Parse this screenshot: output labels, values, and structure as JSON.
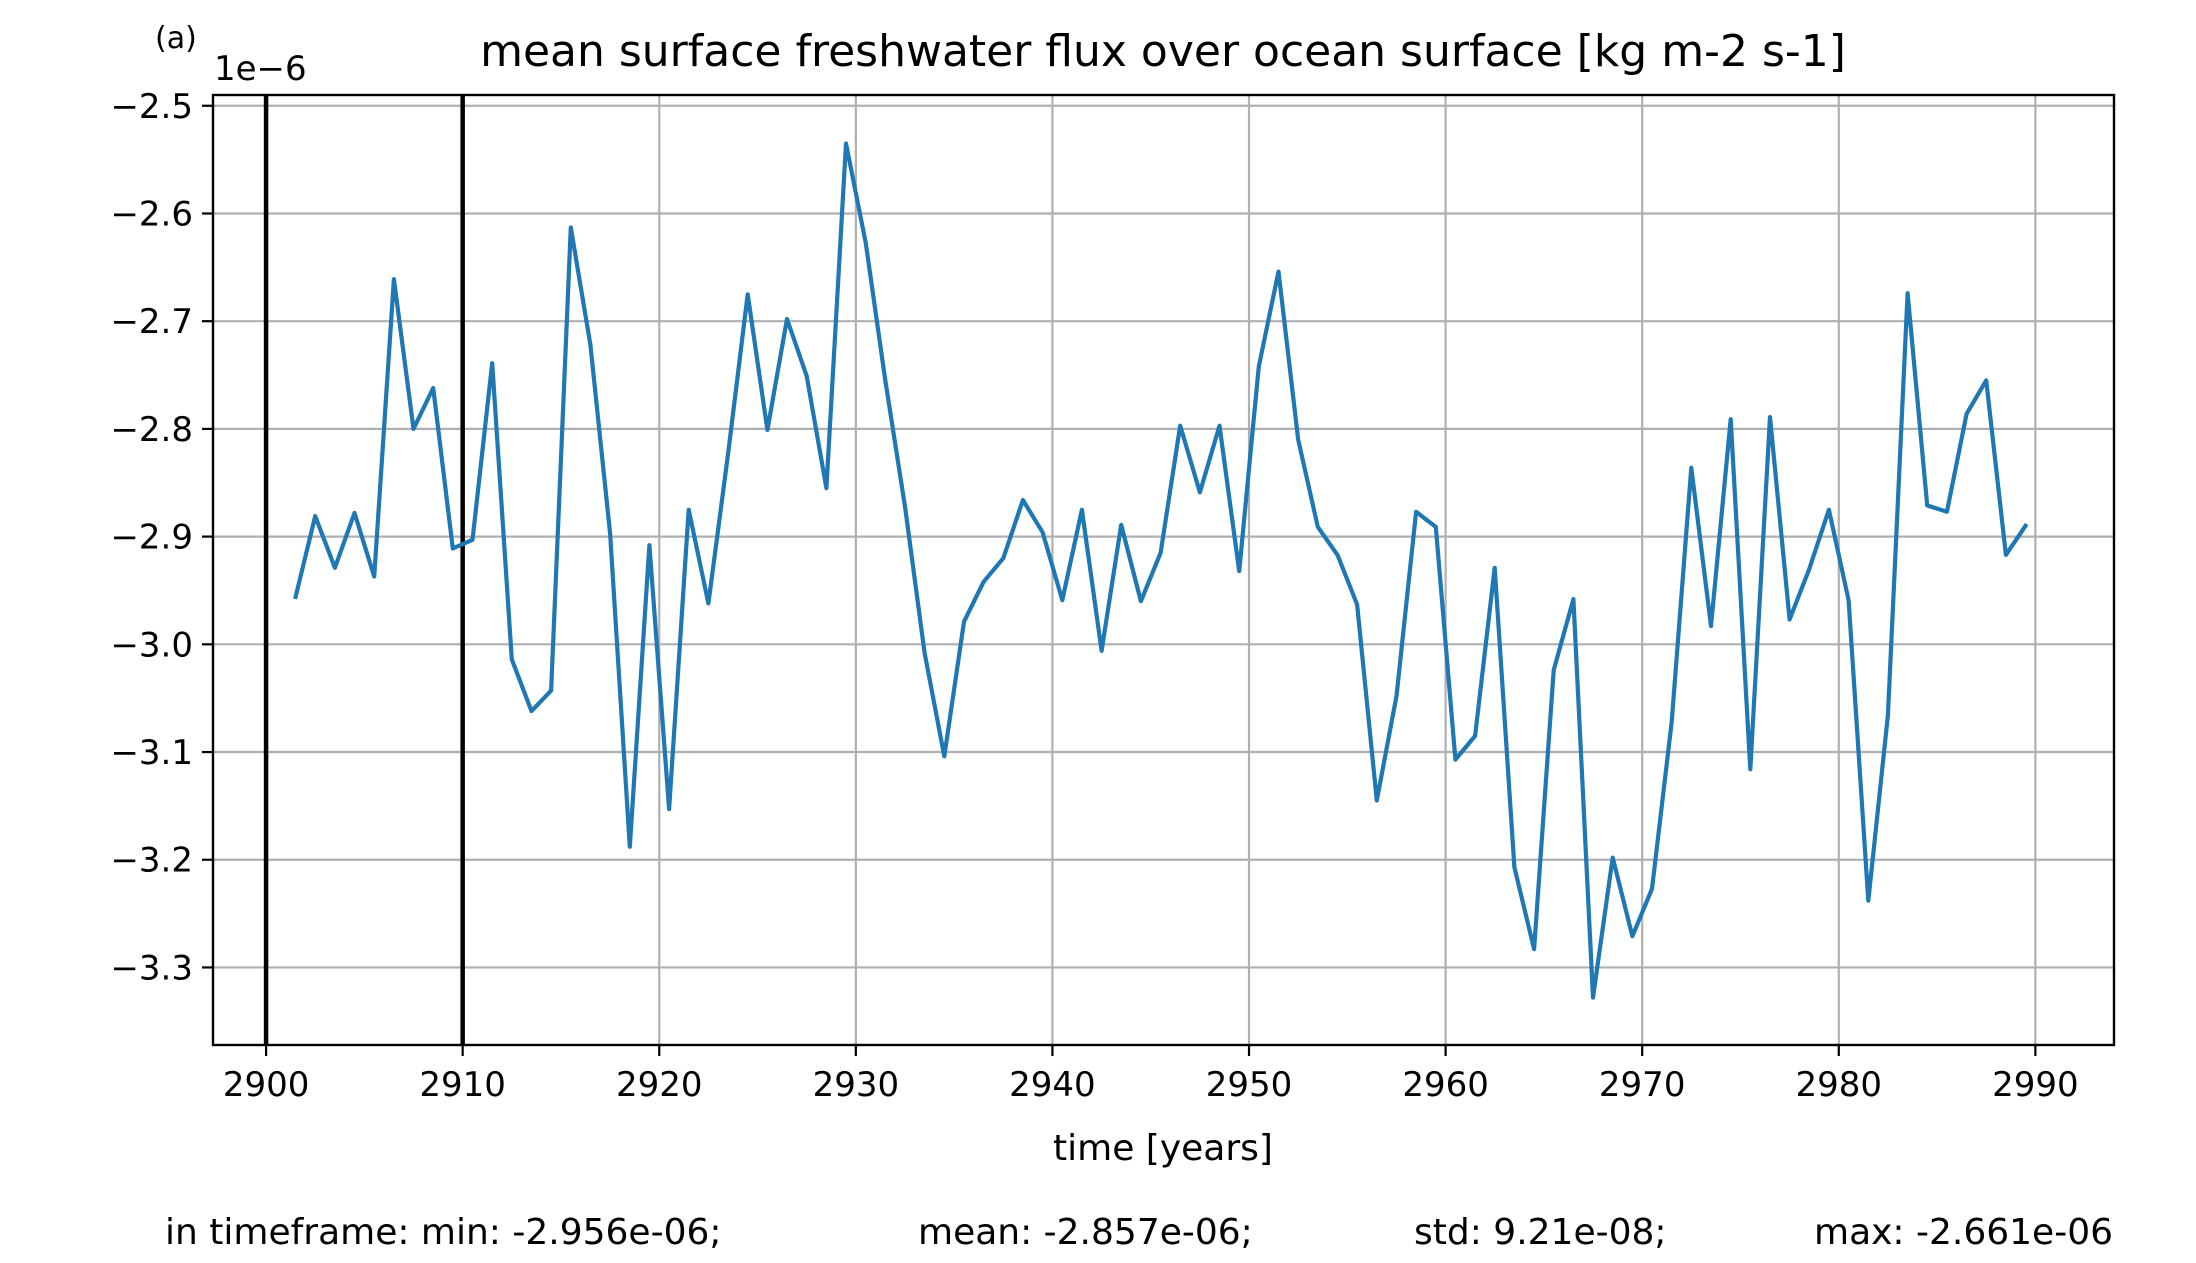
{
  "chart_data": {
    "type": "line",
    "panel_label": "(a)",
    "title": "mean surface freshwater flux over ocean surface [kg m-2 s-1]",
    "xlabel": "time [years]",
    "ylabel": "",
    "y_offset_label": "1e−6",
    "xlim": [
      2897.3,
      2994.0
    ],
    "ylim": [
      -3.372,
      -2.49
    ],
    "x_ticks": [
      2900,
      2910,
      2920,
      2930,
      2940,
      2950,
      2960,
      2970,
      2980,
      2990
    ],
    "x_tick_labels": [
      "2900",
      "2910",
      "2920",
      "2930",
      "2940",
      "2950",
      "2960",
      "2970",
      "2980",
      "2990"
    ],
    "y_ticks": [
      -2.5,
      -2.6,
      -2.7,
      -2.8,
      -2.9,
      -3.0,
      -3.1,
      -3.2,
      -3.3
    ],
    "y_tick_labels": [
      "−2.5",
      "−2.6",
      "−2.7",
      "−2.8",
      "−2.9",
      "−3.0",
      "−3.1",
      "−3.2",
      "−3.3"
    ],
    "grid": true,
    "vertical_lines": [
      2900,
      2910
    ],
    "series": [
      {
        "color": "#1f77b4",
        "x": [
          2901.5,
          2902.5,
          2903.5,
          2904.5,
          2905.5,
          2906.5,
          2907.5,
          2908.5,
          2909.5,
          2910.5,
          2911.5,
          2912.5,
          2913.5,
          2914.5,
          2915.5,
          2916.5,
          2917.5,
          2918.5,
          2919.5,
          2920.5,
          2921.5,
          2922.5,
          2923.5,
          2924.5,
          2925.5,
          2926.5,
          2927.5,
          2928.5,
          2929.5,
          2930.5,
          2931.5,
          2932.5,
          2933.5,
          2934.5,
          2935.5,
          2936.5,
          2937.5,
          2938.5,
          2939.5,
          2940.5,
          2941.5,
          2942.5,
          2943.5,
          2944.5,
          2945.5,
          2946.5,
          2947.5,
          2948.5,
          2949.5,
          2950.5,
          2951.5,
          2952.5,
          2953.5,
          2954.5,
          2955.5,
          2956.5,
          2957.5,
          2958.5,
          2959.5,
          2960.5,
          2961.5,
          2962.5,
          2963.5,
          2964.5,
          2965.5,
          2966.5,
          2967.5,
          2968.5,
          2969.5,
          2970.5,
          2971.5,
          2972.5,
          2973.5,
          2974.5,
          2975.5,
          2976.5,
          2977.5,
          2978.5,
          2979.5,
          2980.5,
          2981.5,
          2982.5,
          2983.5,
          2984.5,
          2985.5,
          2986.5,
          2987.5,
          2988.5,
          2989.5
        ],
        "y": [
          -2.956,
          -2.881,
          -2.929,
          -2.878,
          -2.937,
          -2.661,
          -2.8,
          -2.762,
          -2.911,
          -2.903,
          -2.739,
          -3.014,
          -3.062,
          -3.043,
          -2.613,
          -2.722,
          -2.897,
          -3.188,
          -2.908,
          -3.153,
          -2.875,
          -2.962,
          -2.823,
          -2.675,
          -2.801,
          -2.698,
          -2.751,
          -2.855,
          -2.535,
          -2.627,
          -2.755,
          -2.872,
          -3.008,
          -3.104,
          -2.979,
          -2.942,
          -2.92,
          -2.866,
          -2.896,
          -2.959,
          -2.875,
          -3.006,
          -2.889,
          -2.96,
          -2.915,
          -2.797,
          -2.859,
          -2.797,
          -2.932,
          -2.742,
          -2.654,
          -2.81,
          -2.891,
          -2.917,
          -2.963,
          -3.145,
          -3.048,
          -2.877,
          -2.891,
          -3.107,
          -3.085,
          -2.929,
          -3.207,
          -3.283,
          -3.024,
          -2.958,
          -3.328,
          -3.198,
          -3.271,
          -3.227,
          -3.072,
          -2.836,
          -2.983,
          -2.791,
          -3.116,
          -2.789,
          -2.977,
          -2.93,
          -2.875,
          -2.959,
          -3.238,
          -3.066,
          -2.674,
          -2.871,
          -2.877,
          -2.786,
          -2.755,
          -2.917,
          -2.89
        ]
      }
    ]
  },
  "stats": {
    "min": "in timeframe: min: -2.956e-06;",
    "mean": "mean: -2.857e-06;",
    "std": "std: 9.21e-08;",
    "max": "max: -2.661e-06"
  }
}
